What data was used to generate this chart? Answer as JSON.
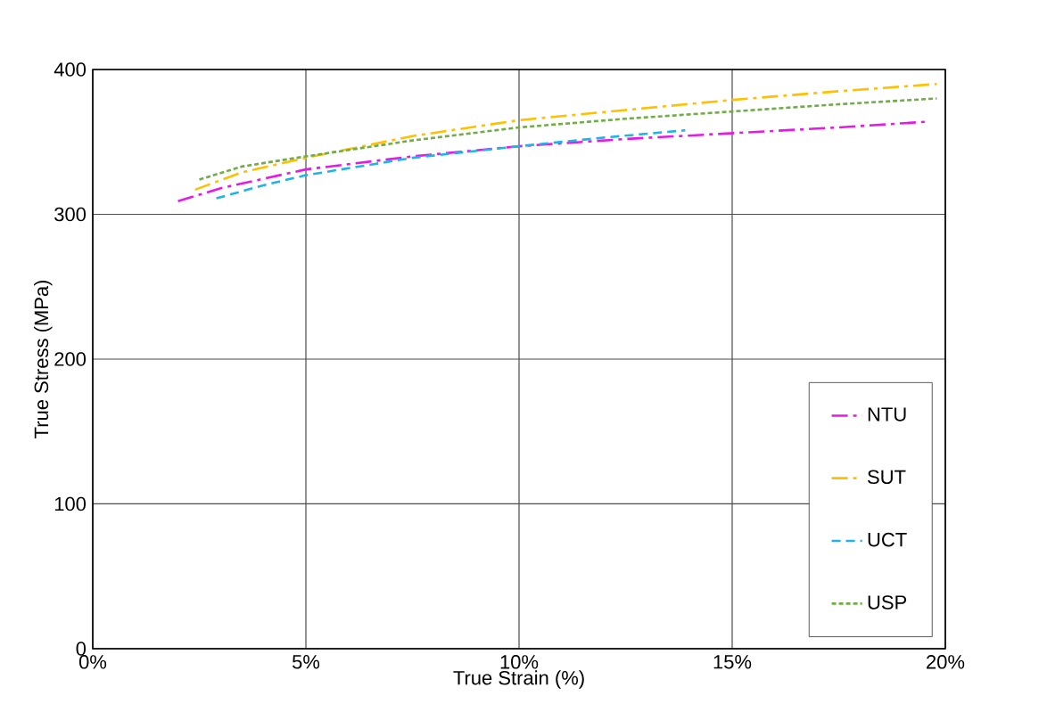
{
  "chart_data": {
    "type": "line",
    "xlabel": "True Strain (%)",
    "ylabel": "True Stress (MPa)",
    "xlim": [
      0,
      20
    ],
    "ylim": [
      0,
      400
    ],
    "xticks": [
      {
        "value": 0,
        "label": "0%"
      },
      {
        "value": 5,
        "label": "5%"
      },
      {
        "value": 10,
        "label": "10%"
      },
      {
        "value": 15,
        "label": "15%"
      },
      {
        "value": 20,
        "label": "20%"
      }
    ],
    "yticks": [
      0,
      100,
      200,
      300,
      400
    ],
    "grid": true,
    "legend": "bottom right",
    "marker": "none",
    "series": [
      {
        "name": "NTU",
        "color": "#e619e6",
        "line_style": "dashdot",
        "x": [
          2,
          3,
          5,
          7.5,
          10,
          12.5,
          15,
          17.5,
          19.6
        ],
        "values": [
          309,
          318,
          331,
          340,
          347,
          352,
          356,
          360,
          364
        ]
      },
      {
        "name": "SUT",
        "color": "#ffc000",
        "line_style": "dashdot",
        "x": [
          2.4,
          3.5,
          5,
          7.5,
          10,
          12.5,
          15,
          17.5,
          19.8
        ],
        "values": [
          317,
          329,
          339,
          354,
          365,
          372,
          379,
          385,
          390
        ]
      },
      {
        "name": "UCT",
        "color": "#1fb4e6",
        "line_style": "dashed",
        "x": [
          2.9,
          4,
          5,
          7.5,
          10,
          12,
          13.9
        ],
        "values": [
          311,
          320,
          327,
          339,
          347,
          353,
          358
        ]
      },
      {
        "name": "USP",
        "color": "#70ad47",
        "line_style": "dotted",
        "x": [
          2.5,
          3.5,
          5,
          7.5,
          10,
          12.5,
          15,
          17.5,
          19.8
        ],
        "values": [
          324,
          333,
          340,
          351,
          360,
          366,
          371,
          376,
          380
        ]
      }
    ]
  }
}
